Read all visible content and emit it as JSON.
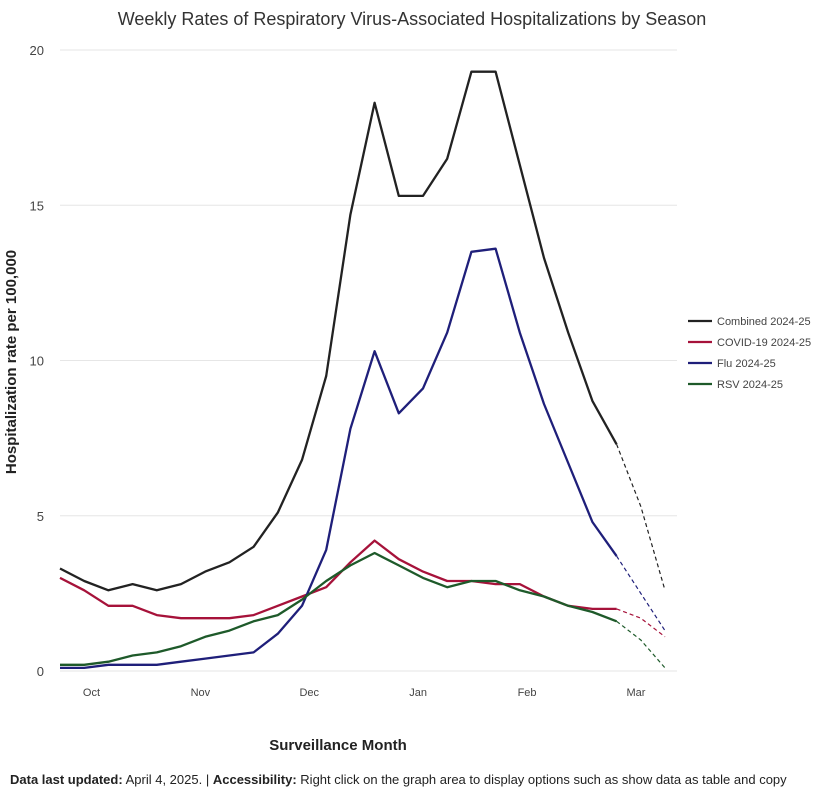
{
  "chart_data": {
    "type": "line",
    "title": "Weekly Rates of Respiratory Virus-Associated Hospitalizations by Season",
    "xlabel": "Surveillance Month",
    "ylabel": "Hospitalization rate per 100,000",
    "ylim": [
      0,
      20
    ],
    "yticks": [
      0,
      5,
      10,
      15,
      20
    ],
    "xticks": [
      "Oct",
      "Nov",
      "Dec",
      "Jan",
      "Feb",
      "Mar"
    ],
    "week_count": 27,
    "grid": true,
    "legend_position": "right",
    "series": [
      {
        "name": "Combined 2024-25",
        "color": "#222222",
        "values": [
          3.3,
          2.9,
          2.6,
          2.8,
          2.6,
          2.8,
          3.2,
          3.5,
          4.0,
          5.1,
          6.8,
          9.5,
          14.7,
          18.3,
          15.3,
          15.3,
          16.5,
          19.3,
          19.3,
          16.3,
          13.3,
          10.9,
          8.7,
          7.3
        ],
        "projected": [
          7.3,
          5.3,
          2.6
        ]
      },
      {
        "name": "COVID-19 2024-25",
        "color": "#a6123a",
        "values": [
          3.0,
          2.6,
          2.1,
          2.1,
          1.8,
          1.7,
          1.7,
          1.7,
          1.8,
          2.1,
          2.4,
          2.7,
          3.5,
          4.2,
          3.6,
          3.2,
          2.9,
          2.9,
          2.8,
          2.8,
          2.4,
          2.1,
          2.0,
          2.0
        ],
        "projected": [
          2.0,
          1.7,
          1.1
        ]
      },
      {
        "name": "Flu 2024-25",
        "color": "#1f1f7a",
        "values": [
          0.1,
          0.1,
          0.2,
          0.2,
          0.2,
          0.3,
          0.4,
          0.5,
          0.6,
          1.2,
          2.1,
          3.9,
          7.8,
          10.3,
          8.3,
          9.1,
          10.9,
          13.5,
          13.6,
          10.9,
          8.6,
          6.7,
          4.8,
          3.7
        ],
        "projected": [
          3.7,
          2.5,
          1.3
        ]
      },
      {
        "name": "RSV 2024-25",
        "color": "#1e5a2a",
        "values": [
          0.2,
          0.2,
          0.3,
          0.5,
          0.6,
          0.8,
          1.1,
          1.3,
          1.6,
          1.8,
          2.3,
          2.9,
          3.4,
          3.8,
          3.4,
          3.0,
          2.7,
          2.9,
          2.9,
          2.6,
          2.4,
          2.1,
          1.9,
          1.6
        ],
        "projected": [
          1.6,
          1.0,
          0.1
        ]
      }
    ]
  },
  "footer": {
    "updated_label": "Data last updated:",
    "updated_value": "April 4, 2025.",
    "separator": "|",
    "accessibility_label": "Accessibility:",
    "accessibility_text": "Right click on the graph area to display options such as show data as table and copy"
  }
}
